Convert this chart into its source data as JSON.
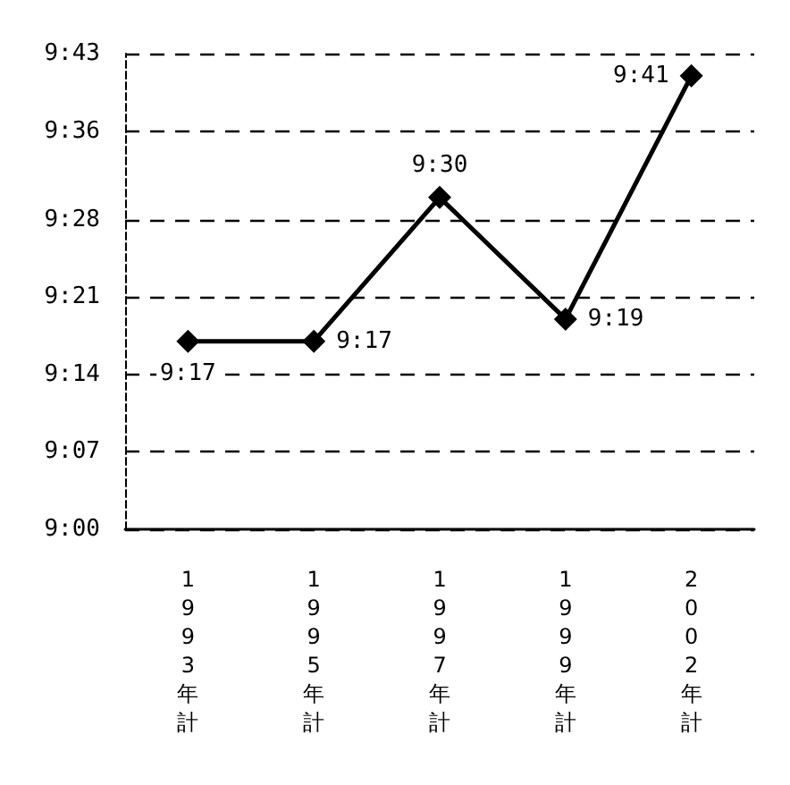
{
  "chart_data": {
    "type": "line",
    "categories": [
      "1993年計",
      "1995年計",
      "1997年計",
      "1999年計",
      "2002年計"
    ],
    "series": [
      {
        "color": "#000000",
        "values": [
          9.2833,
          9.2833,
          9.5,
          9.3167,
          9.6833
        ],
        "value_labels": [
          "9:17",
          "9:17",
          "9:30",
          "9:19",
          "9:41"
        ]
      }
    ],
    "ylim": [
      9,
      9.7167
    ],
    "yticks": [
      {
        "value": 9,
        "label": "9:00"
      },
      {
        "value": 9.1167,
        "label": "9:07"
      },
      {
        "value": 9.2333,
        "label": "9:14"
      },
      {
        "value": 9.35,
        "label": "9:21"
      },
      {
        "value": 9.4667,
        "label": "9:28"
      },
      {
        "value": 9.6,
        "label": "9:36"
      },
      {
        "value": 9.7167,
        "label": "9:43"
      }
    ],
    "grid": "y",
    "marker": "diamond",
    "line_style": "solid"
  }
}
